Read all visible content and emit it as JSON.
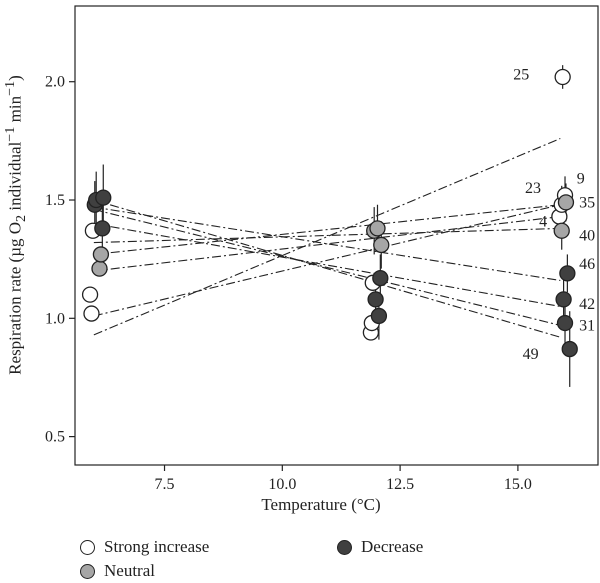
{
  "chart_data": {
    "type": "scatter",
    "xlabel": "Temperature (°C)",
    "ylabel_parts": {
      "base": "Respiration rate (µg O",
      "sub": "2",
      "mid": " individual",
      "sup": "−1",
      "end": " min",
      "sup2": "−1",
      "close": ")"
    },
    "xlim": [
      5.6,
      16.7
    ],
    "ylim": [
      0.38,
      2.32
    ],
    "x_ticks": [
      7.5,
      10.0,
      12.5,
      15.0
    ],
    "x_tick_labels": [
      "7.5",
      "10.0",
      "12.5",
      "15.0"
    ],
    "y_ticks": [
      0.5,
      1.0,
      1.5,
      2.0
    ],
    "y_tick_labels": [
      "0.5",
      "1.0",
      "1.5",
      "2.0"
    ],
    "grid": false,
    "legend_position": "bottom",
    "groups": [
      {
        "name": "Strong increase",
        "color": "#ffffff"
      },
      {
        "name": "Neutral",
        "color": "#a6a6a6"
      },
      {
        "name": "Decrease",
        "color": "#404040"
      }
    ],
    "points": [
      {
        "x": 5.92,
        "y": 1.1,
        "group": "Strong increase",
        "err": 0.0
      },
      {
        "x": 5.95,
        "y": 1.02,
        "group": "Strong increase",
        "err": 0.0
      },
      {
        "x": 5.98,
        "y": 1.37,
        "group": "Strong increase",
        "err": 0.0
      },
      {
        "x": 6.02,
        "y": 1.48,
        "group": "Decrease",
        "err": 0.1
      },
      {
        "x": 6.05,
        "y": 1.5,
        "group": "Decrease",
        "err": 0.12
      },
      {
        "x": 6.12,
        "y": 1.21,
        "group": "Neutral",
        "err": 0.0
      },
      {
        "x": 6.15,
        "y": 1.27,
        "group": "Neutral",
        "err": 0.0
      },
      {
        "x": 6.18,
        "y": 1.38,
        "group": "Decrease",
        "err": 0.15
      },
      {
        "x": 6.2,
        "y": 1.51,
        "group": "Decrease",
        "err": 0.14
      },
      {
        "x": 11.88,
        "y": 0.94,
        "group": "Strong increase",
        "err": 0.0
      },
      {
        "x": 11.9,
        "y": 0.98,
        "group": "Strong increase",
        "err": 0.0
      },
      {
        "x": 11.92,
        "y": 1.15,
        "group": "Strong increase",
        "err": 0.0
      },
      {
        "x": 11.95,
        "y": 1.37,
        "group": "Neutral",
        "err": 0.1
      },
      {
        "x": 11.98,
        "y": 1.08,
        "group": "Decrease",
        "err": 0.1
      },
      {
        "x": 12.02,
        "y": 1.38,
        "group": "Neutral",
        "err": 0.1
      },
      {
        "x": 12.05,
        "y": 1.01,
        "group": "Decrease",
        "err": 0.1
      },
      {
        "x": 12.08,
        "y": 1.17,
        "group": "Decrease",
        "err": 0.1
      },
      {
        "x": 12.1,
        "y": 1.31,
        "group": "Neutral",
        "err": 0.1
      },
      {
        "x": 15.95,
        "y": 2.02,
        "group": "Strong increase",
        "err": 0.05
      },
      {
        "x": 15.88,
        "y": 1.43,
        "group": "Strong increase",
        "err": 0.08
      },
      {
        "x": 15.93,
        "y": 1.48,
        "group": "Strong increase",
        "err": 0.08
      },
      {
        "x": 16.0,
        "y": 1.52,
        "group": "Strong increase",
        "err": 0.08
      },
      {
        "x": 16.02,
        "y": 1.49,
        "group": "Neutral",
        "err": 0.08
      },
      {
        "x": 15.93,
        "y": 1.37,
        "group": "Neutral",
        "err": 0.08
      },
      {
        "x": 16.05,
        "y": 1.19,
        "group": "Decrease",
        "err": 0.08
      },
      {
        "x": 15.97,
        "y": 1.08,
        "group": "Decrease",
        "err": 0.1
      },
      {
        "x": 16.0,
        "y": 0.98,
        "group": "Decrease",
        "err": 0.12
      },
      {
        "x": 16.1,
        "y": 0.87,
        "group": "Decrease",
        "err": 0.16
      }
    ],
    "trend_lines": [
      {
        "x": [
          6.0,
          15.9
        ],
        "y": [
          0.93,
          1.76
        ]
      },
      {
        "x": [
          6.0,
          15.9
        ],
        "y": [
          1.01,
          1.48
        ]
      },
      {
        "x": [
          6.0,
          15.9
        ],
        "y": [
          1.2,
          1.43
        ]
      },
      {
        "x": [
          6.0,
          15.9
        ],
        "y": [
          1.27,
          1.48
        ]
      },
      {
        "x": [
          6.0,
          15.9
        ],
        "y": [
          1.32,
          1.38
        ]
      },
      {
        "x": [
          6.0,
          15.9
        ],
        "y": [
          1.4,
          1.05
        ]
      },
      {
        "x": [
          6.0,
          15.9
        ],
        "y": [
          1.46,
          0.97
        ]
      },
      {
        "x": [
          6.0,
          15.9
        ],
        "y": [
          1.5,
          0.92
        ]
      },
      {
        "x": [
          6.0,
          15.9
        ],
        "y": [
          1.47,
          1.16
        ]
      }
    ],
    "annotations": [
      {
        "text": "25",
        "x": 14.9,
        "y": 2.03
      },
      {
        "text": "9",
        "x": 16.25,
        "y": 1.59
      },
      {
        "text": "23",
        "x": 15.15,
        "y": 1.55
      },
      {
        "text": "35",
        "x": 16.3,
        "y": 1.49
      },
      {
        "text": "4",
        "x": 15.45,
        "y": 1.41
      },
      {
        "text": "40",
        "x": 16.3,
        "y": 1.35
      },
      {
        "text": "46",
        "x": 16.3,
        "y": 1.23
      },
      {
        "text": "42",
        "x": 16.3,
        "y": 1.06
      },
      {
        "text": "31",
        "x": 16.3,
        "y": 0.97
      },
      {
        "text": "49",
        "x": 15.1,
        "y": 0.85
      }
    ]
  }
}
